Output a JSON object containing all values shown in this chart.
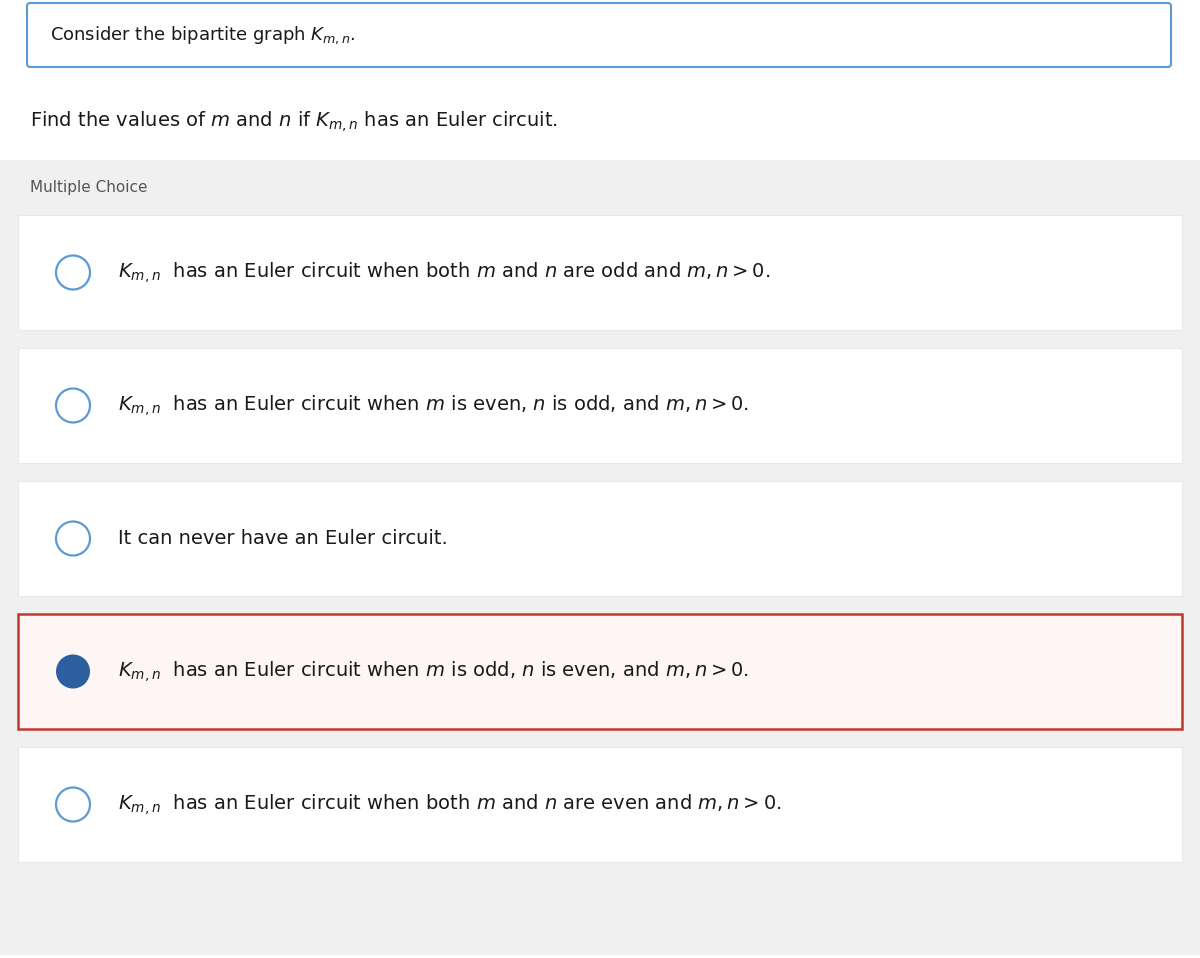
{
  "title_box_text": "Consider the bipartite graph $K_{m,n}$.",
  "question_text": "Find the values of $m$ and $n$ if $K_{m,n}$ has an Euler circuit.",
  "section_label": "Multiple Choice",
  "options": [
    {
      "latex": "$K_{m,n}$ has an Euler circuit when both $m$ and $n$ are odd and $m$, $n$$>$0.",
      "display": "$K_{m,n}$  has an Euler circuit when both $m$ and $n$ are odd and $m, n>0$.",
      "selected": false
    },
    {
      "latex": "$K_{m,n}$ has an Euler circuit when $m$ is even, $n$ is odd, and $m$, $n$$>$0.",
      "display": "$K_{m,n}$  has an Euler circuit when $m$ is even, $n$ is odd, and $m, n>0$.",
      "selected": false
    },
    {
      "latex": "It can never have an Euler circuit.",
      "display": "It can never have an Euler circuit.",
      "selected": false
    },
    {
      "latex": "$K_{m,n}$ has an Euler circuit when $m$ is odd, $n$ is even, and $m$, $n$$>$0.",
      "display": "$K_{m,n}$  has an Euler circuit when $m$ is odd, $n$ is even, and $m, n>0$.",
      "selected": true
    },
    {
      "latex": "$K_{m,n}$ has an Euler circuit when both $m$ and $n$ are even and $m$, $n$$>$0.",
      "display": "$K_{m,n}$  has an Euler circuit when both $m$ and $n$ are even and $m, n>0$.",
      "selected": false
    }
  ],
  "bg_color": "#ffffff",
  "section_bg": "#f0f0f0",
  "option_bg_normal": "#ffffff",
  "option_bg_selected": "#fef5f5",
  "border_color_blue": "#5b9bd5",
  "border_color_red": "#c0392b",
  "circle_stroke": "#5b9bd5",
  "circle_fill_selected": "#2c5f9e",
  "divider_color": "#e8e8e8",
  "text_color": "#1a1a1a",
  "section_text_color": "#555555",
  "title_fontsize": 13,
  "question_fontsize": 14,
  "section_fontsize": 11,
  "option_fontsize": 14
}
